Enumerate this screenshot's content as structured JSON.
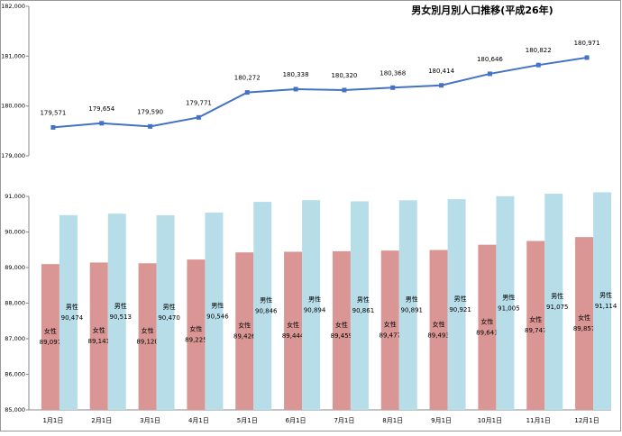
{
  "chart_data": [
    {
      "type": "line",
      "title": "男女別月別人口推移(平成26年)",
      "series": [
        {
          "color": "#4472c4",
          "values": [
            179571,
            179654,
            179590,
            179771,
            180272,
            180338,
            180320,
            180368,
            180414,
            180646,
            180822,
            180971
          ],
          "value_labels": [
            "179,571",
            "179,654",
            "179,590",
            "179,771",
            "180,272",
            "180,338",
            "180,320",
            "180,368",
            "180,414",
            "180,646",
            "180,822",
            "180,971"
          ]
        }
      ],
      "ylim": [
        179000,
        182000
      ],
      "yticks": [
        {
          "value": 179000,
          "label": "179,000"
        },
        {
          "value": 180000,
          "label": "180,000"
        },
        {
          "value": 181000,
          "label": "181,000"
        },
        {
          "value": 182000,
          "label": "182,000"
        }
      ]
    },
    {
      "type": "bar",
      "categories": [
        "1月1日",
        "2月1日",
        "3月1日",
        "4月1日",
        "5月1日",
        "6月1日",
        "7月1日",
        "8月1日",
        "9月1日",
        "10月1日",
        "11月1日",
        "12月1日"
      ],
      "series": [
        {
          "name": "女性",
          "color": "#d99694",
          "values": [
            89097,
            89141,
            89120,
            89225,
            89426,
            89444,
            89459,
            89477,
            89493,
            89641,
            89747,
            89857
          ],
          "value_labels": [
            "89,097",
            "89,141",
            "89,120",
            "89,225",
            "89,426",
            "89,444",
            "89,459",
            "89,477",
            "89,493",
            "89,641",
            "89,747",
            "89,857"
          ]
        },
        {
          "name": "男性",
          "color": "#b7dee8",
          "values": [
            90474,
            90513,
            90470,
            90546,
            90846,
            90894,
            90861,
            90891,
            90921,
            91005,
            91075,
            91114
          ],
          "value_labels": [
            "90,474",
            "90,513",
            "90,470",
            "90,546",
            "90,846",
            "90,894",
            "90,861",
            "90,891",
            "90,921",
            "91,005",
            "91,075",
            "91,114"
          ]
        }
      ],
      "ylim": [
        85000,
        91000
      ],
      "yticks": [
        {
          "value": 85000,
          "label": "85,000"
        },
        {
          "value": 86000,
          "label": "86,000"
        },
        {
          "value": 87000,
          "label": "87,000"
        },
        {
          "value": 88000,
          "label": "88,000"
        },
        {
          "value": 89000,
          "label": "89,000"
        },
        {
          "value": 90000,
          "label": "90,000"
        },
        {
          "value": 91000,
          "label": "91,000"
        }
      ]
    }
  ]
}
